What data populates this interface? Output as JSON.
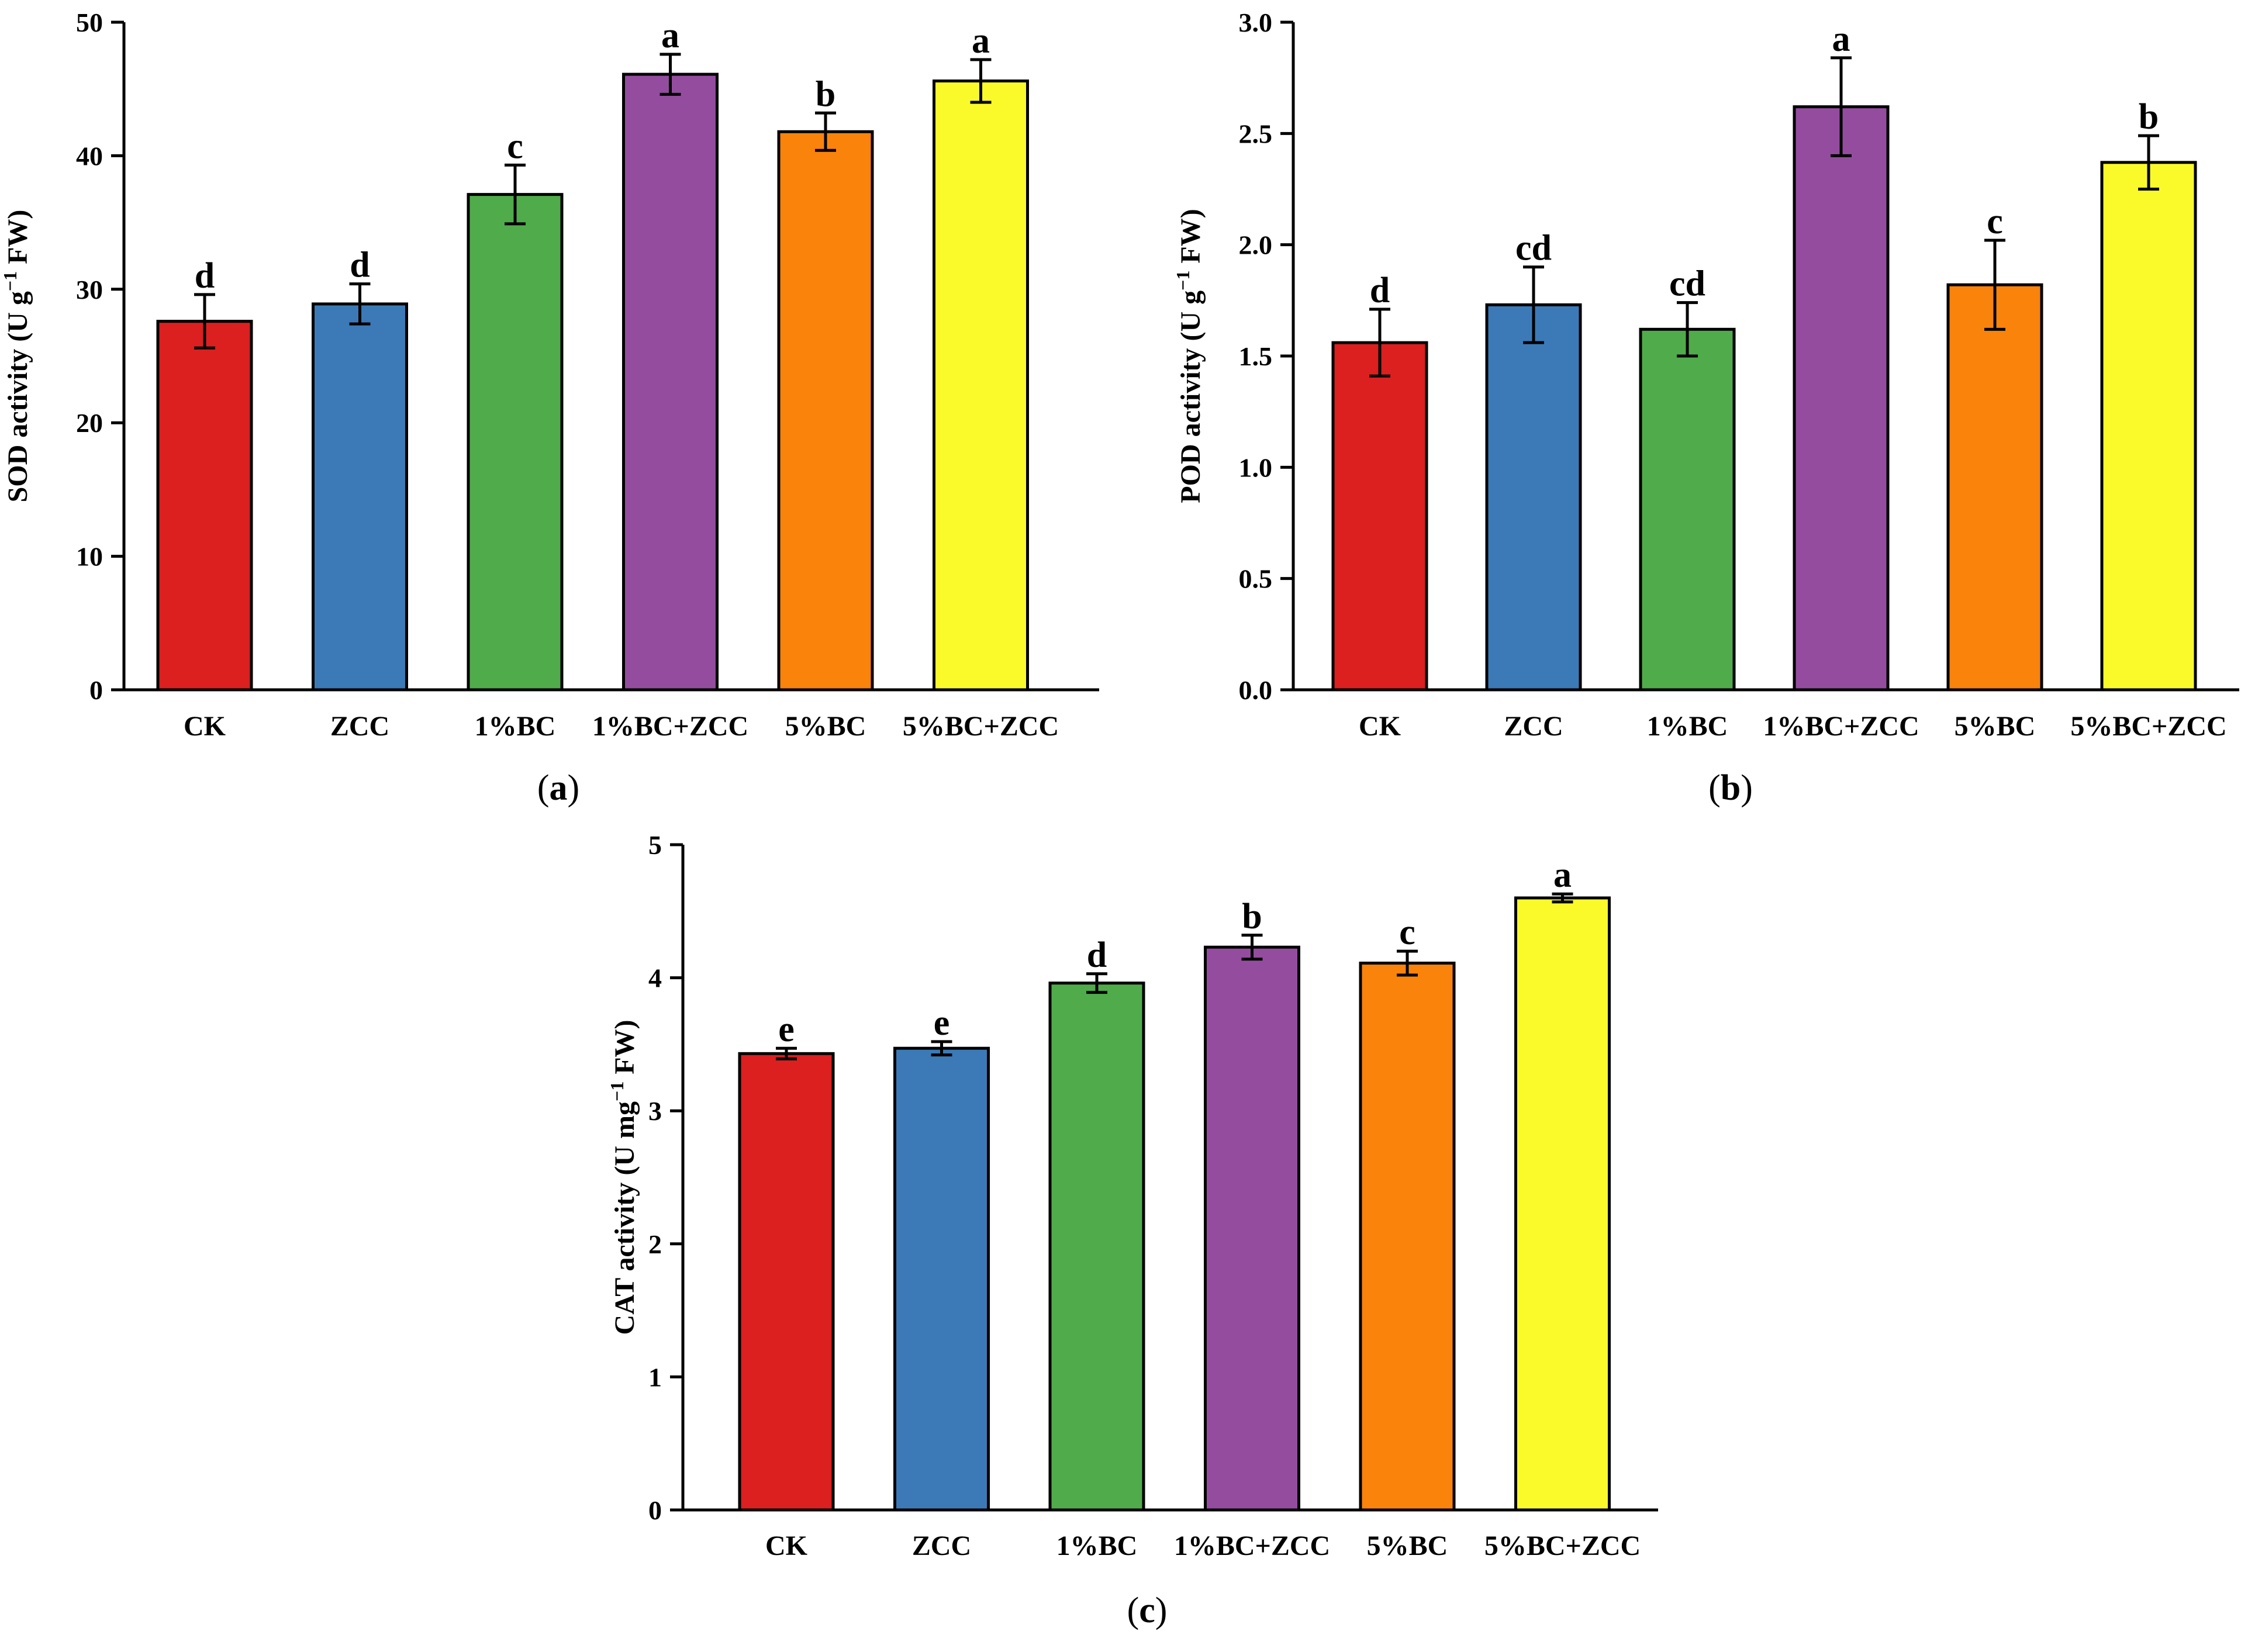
{
  "chart_data": [
    {
      "type": "bar",
      "panel": "(a)",
      "panel_letter": "a",
      "ylabel": "SOD activity (U g−1 FW)",
      "ylabel_parts": {
        "pre": "SOD activity (U g",
        "sup": "−1",
        "post": " FW)"
      },
      "ylim": [
        0,
        50
      ],
      "yticks": [
        0,
        10,
        20,
        30,
        40,
        50
      ],
      "ytick_labels": [
        "0",
        "10",
        "20",
        "30",
        "40",
        "50"
      ],
      "categories": [
        "CK",
        "ZCC",
        "1%BC",
        "1%BC+ZCC",
        "5%BC",
        "5%BC+ZCC"
      ],
      "values": [
        27.6,
        28.9,
        37.1,
        46.1,
        41.8,
        45.6
      ],
      "errors": [
        2.0,
        1.5,
        2.2,
        1.5,
        1.4,
        1.6
      ],
      "significance": [
        "d",
        "d",
        "c",
        "a",
        "b",
        "a"
      ],
      "colors": [
        "#dc1f1f",
        "#3b7ab7",
        "#50ac4a",
        "#944d9e",
        "#fa830c",
        "#fafa2a"
      ]
    },
    {
      "type": "bar",
      "panel": "(b)",
      "panel_letter": "b",
      "ylabel": "POD activity (U g−1 FW)",
      "ylabel_parts": {
        "pre": "POD activity (U g",
        "sup": "−1",
        "post": " FW)"
      },
      "ylim": [
        0,
        3.0
      ],
      "yticks": [
        0,
        0.5,
        1.0,
        1.5,
        2.0,
        2.5,
        3.0
      ],
      "ytick_labels": [
        "0.0",
        "0.5",
        "1.0",
        "1.5",
        "2.0",
        "2.5",
        "3.0"
      ],
      "categories": [
        "CK",
        "ZCC",
        "1%BC",
        "1%BC+ZCC",
        "5%BC",
        "5%BC+ZCC"
      ],
      "values": [
        1.56,
        1.73,
        1.62,
        2.62,
        1.82,
        2.37
      ],
      "errors": [
        0.15,
        0.17,
        0.12,
        0.22,
        0.2,
        0.12
      ],
      "significance": [
        "d",
        "cd",
        "cd",
        "a",
        "c",
        "b"
      ],
      "colors": [
        "#dc1f1f",
        "#3b7ab7",
        "#50ac4a",
        "#944d9e",
        "#fa830c",
        "#fafa2a"
      ]
    },
    {
      "type": "bar",
      "panel": "(c)",
      "panel_letter": "c",
      "ylabel": "CAT activity (U mg−1 FW)",
      "ylabel_parts": {
        "pre": "CAT activity (U mg",
        "sup": "−1",
        "post": " FW)"
      },
      "ylim": [
        0,
        5
      ],
      "yticks": [
        0,
        1,
        2,
        3,
        4,
        5
      ],
      "ytick_labels": [
        "0",
        "1",
        "2",
        "3",
        "4",
        "5"
      ],
      "categories": [
        "CK",
        "ZCC",
        "1%BC",
        "1%BC+ZCC",
        "5%BC",
        "5%BC+ZCC"
      ],
      "values": [
        3.43,
        3.47,
        3.96,
        4.23,
        4.11,
        4.6
      ],
      "errors": [
        0.04,
        0.05,
        0.07,
        0.09,
        0.09,
        0.03
      ],
      "significance": [
        "e",
        "e",
        "d",
        "b",
        "c",
        "a"
      ],
      "colors": [
        "#dc1f1f",
        "#3b7ab7",
        "#50ac4a",
        "#944d9e",
        "#fa830c",
        "#fafa2a"
      ]
    }
  ]
}
